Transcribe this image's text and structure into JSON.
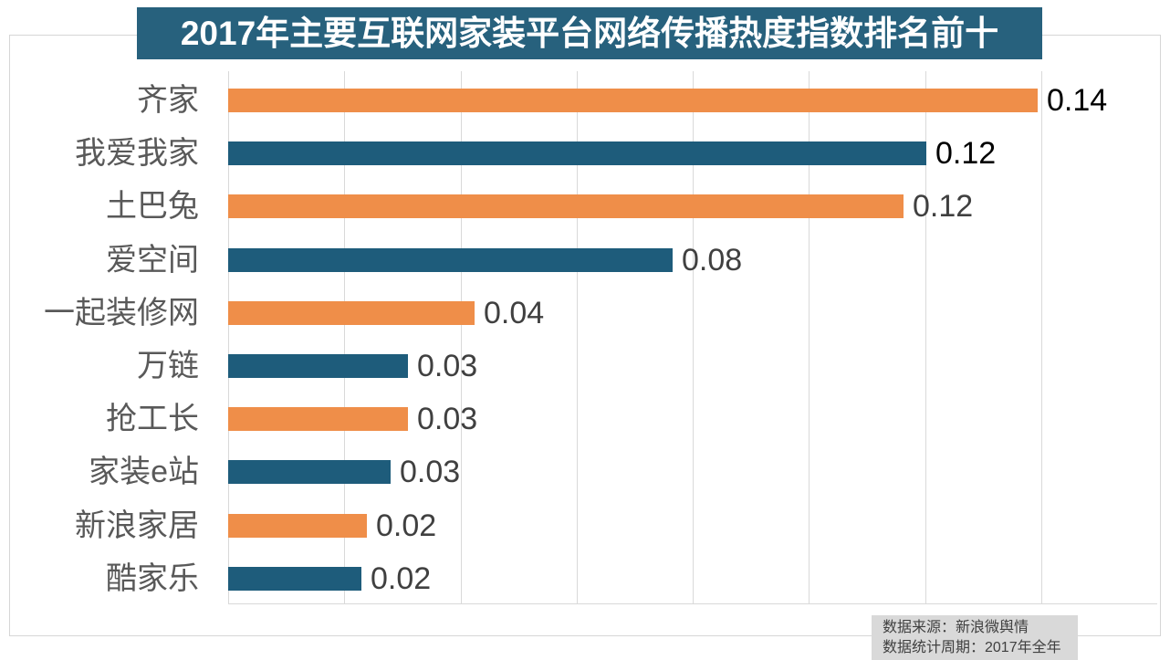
{
  "title": "2017年主要互联网家装平台网络传播热度指数排名前十",
  "source_note": {
    "line1": "数据来源：新浪微舆情",
    "line2": "数据统计周期：2017年全年"
  },
  "colors": {
    "title_bg": "#27617d",
    "title_text": "#ffffff",
    "bar_orange": "#ef8e49",
    "bar_blue": "#1e5c7b",
    "gridline": "#d9d9d9",
    "axis_line": "#d9d9d9",
    "category_text": "#595959",
    "value_text_black": "#000000",
    "value_text_gray": "#404040",
    "note_bg": "#d9d9d9",
    "note_text": "#404040",
    "border": "#d6d6d6"
  },
  "chart_data": {
    "type": "bar",
    "orientation": "horizontal",
    "title": "2017年主要互联网家装平台网络传播热度指数排名前十",
    "categories": [
      "齐家",
      "我爱我家",
      "土巴兔",
      "爱空间",
      "一起装修网",
      "万链",
      "抢工长",
      "家装e站",
      "新浪家居",
      "酷家乐"
    ],
    "values": [
      0.14,
      0.12,
      0.12,
      0.08,
      0.04,
      0.03,
      0.03,
      0.03,
      0.02,
      0.02
    ],
    "value_labels": [
      "0.14",
      "0.12",
      "0.12",
      "0.08",
      "0.04",
      "0.03",
      "0.03",
      "0.03",
      "0.02",
      "0.02"
    ],
    "precise_values": [
      0.1394,
      0.1202,
      0.1163,
      0.0765,
      0.0424,
      0.031,
      0.031,
      0.028,
      0.0239,
      0.0229
    ],
    "bar_colors": [
      "#ef8e49",
      "#1e5c7b",
      "#ef8e49",
      "#1e5c7b",
      "#ef8e49",
      "#1e5c7b",
      "#ef8e49",
      "#1e5c7b",
      "#ef8e49",
      "#1e5c7b"
    ],
    "value_label_colors": [
      "#000000",
      "#000000",
      "#404040",
      "#404040",
      "#404040",
      "#404040",
      "#404040",
      "#404040",
      "#404040",
      "#404040"
    ],
    "xlabel": "",
    "ylabel": "",
    "xlim": [
      0,
      0.16
    ],
    "gridline_step": 0.02,
    "grid": true,
    "legend": false,
    "data_labels": true
  }
}
